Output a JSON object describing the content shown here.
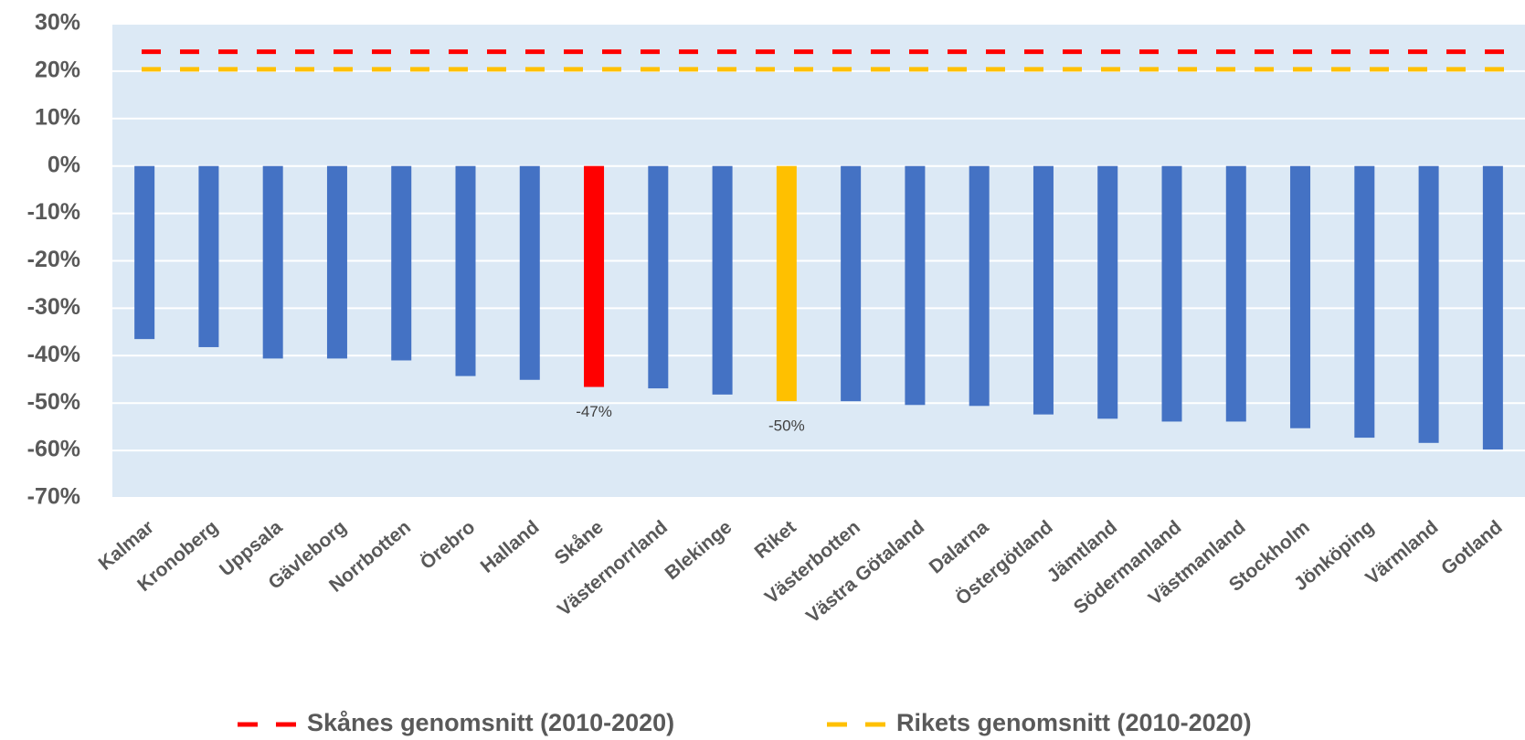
{
  "chart_data": {
    "type": "bar",
    "categories": [
      "Kalmar",
      "Kronoberg",
      "Uppsala",
      "Gävleborg",
      "Norrbotten",
      "Örebro",
      "Halland",
      "Skåne",
      "Västernorrland",
      "Blekinge",
      "Riket",
      "Västerbotten",
      "Västra Götaland",
      "Dalarna",
      "Östergötland",
      "Jämtland",
      "Södermanland",
      "Västmanland",
      "Stockholm",
      "Jönköping",
      "Värmland",
      "Gotland"
    ],
    "values": [
      -36.5,
      -38.2,
      -40.6,
      -40.6,
      -41,
      -44.3,
      -45.1,
      -46.6,
      -46.9,
      -48.2,
      -49.6,
      -49.6,
      -50.4,
      -50.6,
      -52.4,
      -53.3,
      -53.9,
      -53.9,
      -55.3,
      -57.3,
      -58.4,
      -59.8
    ],
    "value_labels": [
      null,
      null,
      null,
      null,
      null,
      null,
      null,
      "-47%",
      null,
      null,
      "-50%",
      null,
      null,
      null,
      null,
      null,
      null,
      null,
      null,
      null,
      null,
      null
    ],
    "bar_colors": [
      "#4472c4",
      "#4472c4",
      "#4472c4",
      "#4472c4",
      "#4472c4",
      "#4472c4",
      "#4472c4",
      "#ff0000",
      "#4472c4",
      "#4472c4",
      "#ffc000",
      "#4472c4",
      "#4472c4",
      "#4472c4",
      "#4472c4",
      "#4472c4",
      "#4472c4",
      "#4472c4",
      "#4472c4",
      "#4472c4",
      "#4472c4",
      "#4472c4"
    ],
    "reference_lines": [
      {
        "name": "Skånes genomsnitt (2010-2020)",
        "color": "#ff0000",
        "value": 24.1
      },
      {
        "name": "Rikets genomsnitt (2010-2020)",
        "color": "#ffc000",
        "value": 20.4
      }
    ],
    "ylim": [
      -70,
      30
    ],
    "yticks": [
      {
        "value": -70,
        "label": "-70%"
      },
      {
        "value": -60,
        "label": "-60%"
      },
      {
        "value": -50,
        "label": "-50%"
      },
      {
        "value": -40,
        "label": "-40%"
      },
      {
        "value": -30,
        "label": "-30%"
      },
      {
        "value": -20,
        "label": "-20%"
      },
      {
        "value": -10,
        "label": "-10%"
      },
      {
        "value": 0,
        "label": "0%"
      },
      {
        "value": 10,
        "label": "10%"
      },
      {
        "value": 20,
        "label": "20%"
      },
      {
        "value": 30,
        "label": "30%"
      }
    ],
    "grid": true
  }
}
